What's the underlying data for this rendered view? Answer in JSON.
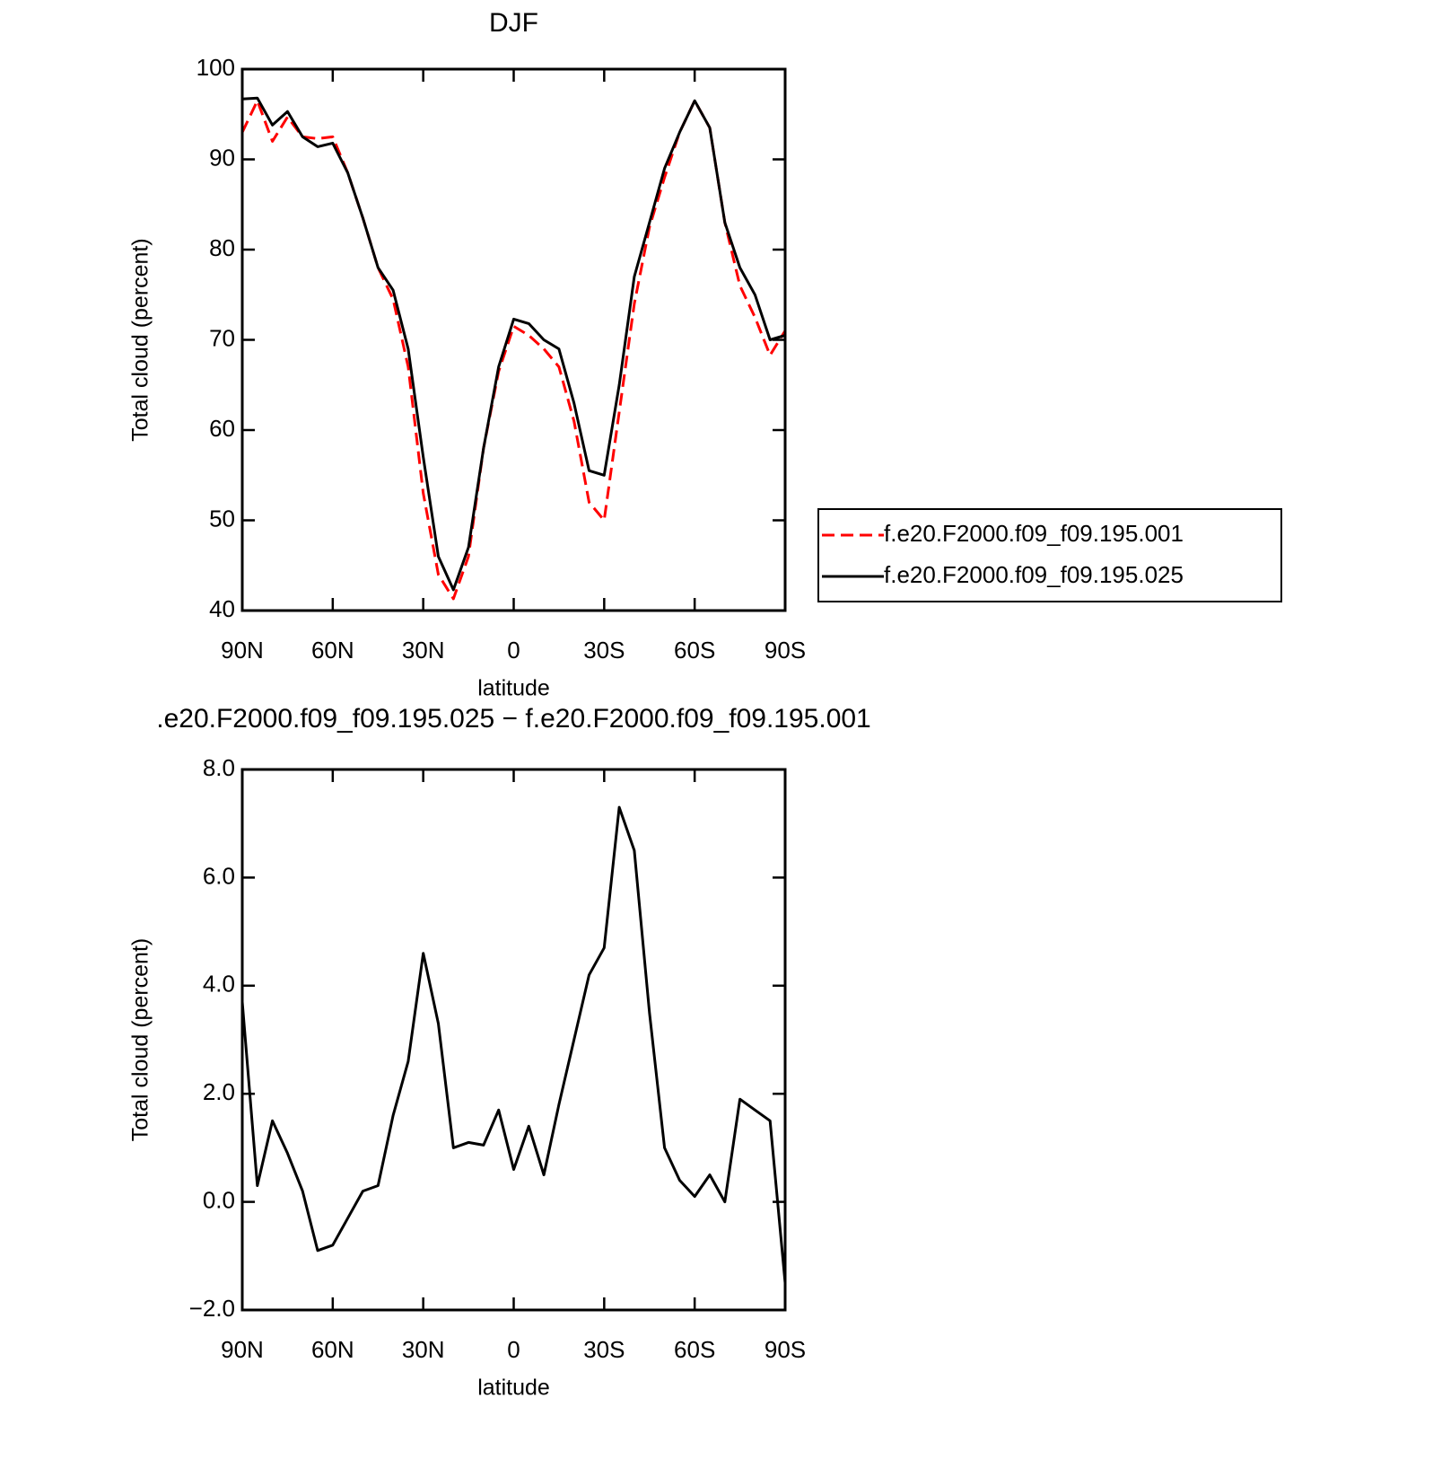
{
  "chart_data": [
    {
      "type": "line",
      "title": "DJF",
      "xlabel": "latitude",
      "ylabel": "Total cloud (percent)",
      "x": [
        90,
        85,
        80,
        75,
        70,
        65,
        60,
        55,
        50,
        45,
        40,
        35,
        30,
        25,
        20,
        15,
        10,
        5,
        0,
        -5,
        -10,
        -15,
        -20,
        -25,
        -30,
        -35,
        -40,
        -45,
        -50,
        -55,
        -60,
        -65,
        -70,
        -75,
        -80,
        -85,
        -90
      ],
      "series": [
        {
          "name": "f.e20.F2000.f09_f09.195.001",
          "color": "#ff0000",
          "dashed": true,
          "values": [
            93,
            96.5,
            92,
            94.7,
            92.5,
            92.3,
            92.5,
            88.5,
            83.5,
            78,
            74.5,
            67,
            53,
            44,
            41.3,
            46,
            58,
            66.5,
            71.5,
            70.5,
            69,
            67,
            61,
            52,
            50,
            62,
            74,
            82.5,
            88,
            93,
            96.5,
            93.5,
            83,
            76,
            72.5,
            68.3,
            71
          ]
        },
        {
          "name": "f.e20.F2000.f09_f09.195.025",
          "color": "#000000",
          "dashed": false,
          "values": [
            96.7,
            96.8,
            93.8,
            95.3,
            92.5,
            91.4,
            91.8,
            88.5,
            83.5,
            78,
            75.5,
            69,
            57,
            46,
            42.3,
            47,
            58,
            67,
            72.3,
            71.8,
            70,
            69,
            63,
            55.5,
            55,
            65,
            77,
            83,
            89,
            93,
            96.5,
            93.5,
            83,
            78,
            75,
            70,
            70.5
          ]
        }
      ],
      "xlim": [
        90,
        -90
      ],
      "xticks": [
        {
          "value": 90,
          "label": "90N"
        },
        {
          "value": 60,
          "label": "60N"
        },
        {
          "value": 30,
          "label": "30N"
        },
        0,
        {
          "value": -30,
          "label": "30S"
        },
        {
          "value": -60,
          "label": "60S"
        },
        {
          "value": -90,
          "label": "90S"
        }
      ],
      "ylim": [
        40,
        100
      ],
      "yticks": [
        40,
        50,
        60,
        70,
        80,
        90,
        100
      ]
    },
    {
      "type": "line",
      "title": ".e20.F2000.f09_f09.195.025 − f.e20.F2000.f09_f09.195.001",
      "xlabel": "latitude",
      "ylabel": "Total cloud (percent)",
      "x": [
        90,
        85,
        80,
        75,
        70,
        65,
        60,
        55,
        50,
        45,
        40,
        35,
        30,
        25,
        20,
        15,
        10,
        5,
        0,
        -5,
        -10,
        -15,
        -20,
        -25,
        -30,
        -35,
        -40,
        -45,
        -50,
        -55,
        -60,
        -65,
        -70,
        -75,
        -80,
        -85,
        -90
      ],
      "series": [
        {
          "color": "#000000",
          "dashed": false,
          "values": [
            3.7,
            0.3,
            1.5,
            0.9,
            0.2,
            -0.9,
            -0.8,
            -0.3,
            0.2,
            0.3,
            1.6,
            2.6,
            4.6,
            3.3,
            1.0,
            1.1,
            1.05,
            1.7,
            0.6,
            1.4,
            0.5,
            1.8,
            3.0,
            4.2,
            4.7,
            7.3,
            6.5,
            3.5,
            1.0,
            0.4,
            0.1,
            0.5,
            0.0,
            1.9,
            1.7,
            1.5,
            -1.5
          ]
        }
      ],
      "xlim": [
        90,
        -90
      ],
      "xticks": [
        {
          "value": 90,
          "label": "90N"
        },
        {
          "value": 60,
          "label": "60N"
        },
        {
          "value": 30,
          "label": "30N"
        },
        0,
        {
          "value": -30,
          "label": "30S"
        },
        {
          "value": -60,
          "label": "60S"
        },
        {
          "value": -90,
          "label": "90S"
        }
      ],
      "ylim": [
        -2,
        8
      ],
      "yticks": [
        {
          "value": -2,
          "label": "−2.0"
        },
        {
          "value": 0,
          "label": "0.0"
        },
        {
          "value": 2,
          "label": "2.0"
        },
        {
          "value": 4,
          "label": "4.0"
        },
        {
          "value": 6,
          "label": "6.0"
        },
        {
          "value": 8,
          "label": "8.0"
        }
      ]
    }
  ]
}
